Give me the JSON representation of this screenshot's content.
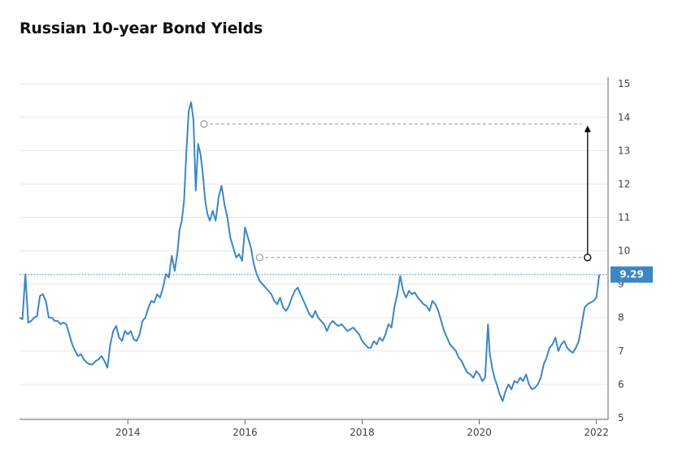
{
  "chart_data": {
    "type": "line",
    "title": "Russian 10-year Bond Yields",
    "xlabel": "",
    "ylabel": "",
    "x_ticks": [
      "2014",
      "2016",
      "2018",
      "2020",
      "2022"
    ],
    "y_ticks": [
      "5",
      "6",
      "7",
      "8",
      "9",
      "10",
      "11",
      "12",
      "13",
      "14",
      "15"
    ],
    "xlim": [
      2012.15,
      2022.2
    ],
    "ylim": [
      4.95,
      15.2
    ],
    "grid": "horizontal",
    "y_axis_position": "right",
    "colors": {
      "line": "#3b87c6",
      "label_bg": "#3b87c6",
      "annotation": "#999999",
      "arrow": "#000000"
    },
    "last_value": {
      "label": "9.29",
      "value": 9.29
    },
    "annotations": {
      "high_line": {
        "x_start": 2015.3,
        "x_end": 2021.75,
        "value": 13.8
      },
      "low_line": {
        "x_start": 2016.25,
        "x_end": 2021.75,
        "value": 9.8
      },
      "arrow": {
        "x": 2021.85,
        "from": 9.8,
        "to": 13.75
      }
    },
    "series": [
      {
        "points": [
          [
            2012.15,
            8.0
          ],
          [
            2012.2,
            7.95
          ],
          [
            2012.25,
            9.3
          ],
          [
            2012.3,
            7.85
          ],
          [
            2012.35,
            7.9
          ],
          [
            2012.4,
            8.0
          ],
          [
            2012.45,
            8.05
          ],
          [
            2012.5,
            8.65
          ],
          [
            2012.55,
            8.7
          ],
          [
            2012.6,
            8.5
          ],
          [
            2012.65,
            8.0
          ],
          [
            2012.7,
            8.0
          ],
          [
            2012.75,
            7.9
          ],
          [
            2012.8,
            7.9
          ],
          [
            2012.85,
            7.8
          ],
          [
            2012.9,
            7.85
          ],
          [
            2012.95,
            7.8
          ],
          [
            2013.0,
            7.5
          ],
          [
            2013.05,
            7.2
          ],
          [
            2013.1,
            7.0
          ],
          [
            2013.15,
            6.85
          ],
          [
            2013.2,
            6.9
          ],
          [
            2013.25,
            6.75
          ],
          [
            2013.3,
            6.65
          ],
          [
            2013.35,
            6.6
          ],
          [
            2013.4,
            6.6
          ],
          [
            2013.45,
            6.7
          ],
          [
            2013.5,
            6.75
          ],
          [
            2013.55,
            6.85
          ],
          [
            2013.6,
            6.7
          ],
          [
            2013.65,
            6.5
          ],
          [
            2013.7,
            7.2
          ],
          [
            2013.75,
            7.6
          ],
          [
            2013.8,
            7.75
          ],
          [
            2013.85,
            7.4
          ],
          [
            2013.9,
            7.3
          ],
          [
            2013.95,
            7.6
          ],
          [
            2014.0,
            7.5
          ],
          [
            2014.05,
            7.6
          ],
          [
            2014.1,
            7.35
          ],
          [
            2014.15,
            7.3
          ],
          [
            2014.2,
            7.5
          ],
          [
            2014.25,
            7.9
          ],
          [
            2014.3,
            8.0
          ],
          [
            2014.35,
            8.3
          ],
          [
            2014.4,
            8.5
          ],
          [
            2014.45,
            8.45
          ],
          [
            2014.5,
            8.7
          ],
          [
            2014.55,
            8.6
          ],
          [
            2014.6,
            8.9
          ],
          [
            2014.65,
            9.3
          ],
          [
            2014.7,
            9.2
          ],
          [
            2014.75,
            9.85
          ],
          [
            2014.8,
            9.4
          ],
          [
            2014.85,
            10.0
          ],
          [
            2014.88,
            10.6
          ],
          [
            2014.92,
            10.9
          ],
          [
            2014.96,
            11.5
          ],
          [
            2015.0,
            13.0
          ],
          [
            2015.04,
            14.2
          ],
          [
            2015.08,
            14.45
          ],
          [
            2015.12,
            13.9
          ],
          [
            2015.16,
            11.8
          ],
          [
            2015.2,
            13.2
          ],
          [
            2015.24,
            12.9
          ],
          [
            2015.28,
            12.3
          ],
          [
            2015.32,
            11.5
          ],
          [
            2015.36,
            11.1
          ],
          [
            2015.4,
            10.9
          ],
          [
            2015.45,
            11.2
          ],
          [
            2015.5,
            10.9
          ],
          [
            2015.55,
            11.6
          ],
          [
            2015.6,
            11.95
          ],
          [
            2015.65,
            11.4
          ],
          [
            2015.7,
            11.0
          ],
          [
            2015.75,
            10.4
          ],
          [
            2015.8,
            10.1
          ],
          [
            2015.85,
            9.8
          ],
          [
            2015.9,
            9.9
          ],
          [
            2015.95,
            9.7
          ],
          [
            2016.0,
            10.7
          ],
          [
            2016.05,
            10.4
          ],
          [
            2016.1,
            10.1
          ],
          [
            2016.15,
            9.6
          ],
          [
            2016.2,
            9.3
          ],
          [
            2016.25,
            9.1
          ],
          [
            2016.3,
            9.0
          ],
          [
            2016.35,
            8.9
          ],
          [
            2016.4,
            8.8
          ],
          [
            2016.45,
            8.7
          ],
          [
            2016.5,
            8.5
          ],
          [
            2016.55,
            8.4
          ],
          [
            2016.6,
            8.6
          ],
          [
            2016.65,
            8.3
          ],
          [
            2016.7,
            8.2
          ],
          [
            2016.75,
            8.35
          ],
          [
            2016.8,
            8.6
          ],
          [
            2016.85,
            8.8
          ],
          [
            2016.9,
            8.9
          ],
          [
            2016.95,
            8.7
          ],
          [
            2017.0,
            8.5
          ],
          [
            2017.05,
            8.3
          ],
          [
            2017.1,
            8.1
          ],
          [
            2017.15,
            8.0
          ],
          [
            2017.2,
            8.2
          ],
          [
            2017.25,
            8.0
          ],
          [
            2017.3,
            7.9
          ],
          [
            2017.35,
            7.8
          ],
          [
            2017.4,
            7.6
          ],
          [
            2017.45,
            7.8
          ],
          [
            2017.5,
            7.9
          ],
          [
            2017.55,
            7.8
          ],
          [
            2017.6,
            7.75
          ],
          [
            2017.65,
            7.8
          ],
          [
            2017.7,
            7.7
          ],
          [
            2017.75,
            7.6
          ],
          [
            2017.8,
            7.65
          ],
          [
            2017.85,
            7.7
          ],
          [
            2017.9,
            7.6
          ],
          [
            2017.95,
            7.5
          ],
          [
            2018.0,
            7.3
          ],
          [
            2018.05,
            7.2
          ],
          [
            2018.1,
            7.1
          ],
          [
            2018.15,
            7.1
          ],
          [
            2018.2,
            7.3
          ],
          [
            2018.25,
            7.2
          ],
          [
            2018.3,
            7.4
          ],
          [
            2018.35,
            7.3
          ],
          [
            2018.4,
            7.5
          ],
          [
            2018.45,
            7.8
          ],
          [
            2018.5,
            7.7
          ],
          [
            2018.55,
            8.3
          ],
          [
            2018.6,
            8.7
          ],
          [
            2018.65,
            9.25
          ],
          [
            2018.7,
            8.8
          ],
          [
            2018.75,
            8.6
          ],
          [
            2018.8,
            8.8
          ],
          [
            2018.85,
            8.7
          ],
          [
            2018.9,
            8.75
          ],
          [
            2018.95,
            8.6
          ],
          [
            2019.0,
            8.5
          ],
          [
            2019.05,
            8.4
          ],
          [
            2019.1,
            8.35
          ],
          [
            2019.15,
            8.2
          ],
          [
            2019.2,
            8.5
          ],
          [
            2019.25,
            8.4
          ],
          [
            2019.3,
            8.2
          ],
          [
            2019.35,
            7.9
          ],
          [
            2019.4,
            7.6
          ],
          [
            2019.45,
            7.4
          ],
          [
            2019.5,
            7.2
          ],
          [
            2019.55,
            7.1
          ],
          [
            2019.6,
            7.0
          ],
          [
            2019.65,
            6.8
          ],
          [
            2019.7,
            6.7
          ],
          [
            2019.75,
            6.5
          ],
          [
            2019.8,
            6.35
          ],
          [
            2019.85,
            6.3
          ],
          [
            2019.9,
            6.2
          ],
          [
            2019.95,
            6.4
          ],
          [
            2020.0,
            6.3
          ],
          [
            2020.05,
            6.1
          ],
          [
            2020.1,
            6.2
          ],
          [
            2020.15,
            7.8
          ],
          [
            2020.18,
            6.9
          ],
          [
            2020.22,
            6.5
          ],
          [
            2020.26,
            6.2
          ],
          [
            2020.3,
            6.0
          ],
          [
            2020.35,
            5.7
          ],
          [
            2020.4,
            5.5
          ],
          [
            2020.45,
            5.8
          ],
          [
            2020.5,
            6.0
          ],
          [
            2020.55,
            5.85
          ],
          [
            2020.6,
            6.1
          ],
          [
            2020.65,
            6.05
          ],
          [
            2020.7,
            6.2
          ],
          [
            2020.75,
            6.1
          ],
          [
            2020.8,
            6.3
          ],
          [
            2020.85,
            6.0
          ],
          [
            2020.9,
            5.85
          ],
          [
            2020.95,
            5.9
          ],
          [
            2021.0,
            6.0
          ],
          [
            2021.05,
            6.2
          ],
          [
            2021.1,
            6.6
          ],
          [
            2021.15,
            6.8
          ],
          [
            2021.2,
            7.1
          ],
          [
            2021.25,
            7.2
          ],
          [
            2021.3,
            7.4
          ],
          [
            2021.35,
            7.0
          ],
          [
            2021.4,
            7.2
          ],
          [
            2021.45,
            7.3
          ],
          [
            2021.5,
            7.1
          ],
          [
            2021.55,
            7.0
          ],
          [
            2021.6,
            6.95
          ],
          [
            2021.65,
            7.1
          ],
          [
            2021.7,
            7.3
          ],
          [
            2021.75,
            7.8
          ],
          [
            2021.8,
            8.3
          ],
          [
            2021.85,
            8.4
          ],
          [
            2021.9,
            8.45
          ],
          [
            2021.95,
            8.5
          ],
          [
            2022.0,
            8.6
          ],
          [
            2022.05,
            9.29
          ]
        ]
      }
    ]
  }
}
